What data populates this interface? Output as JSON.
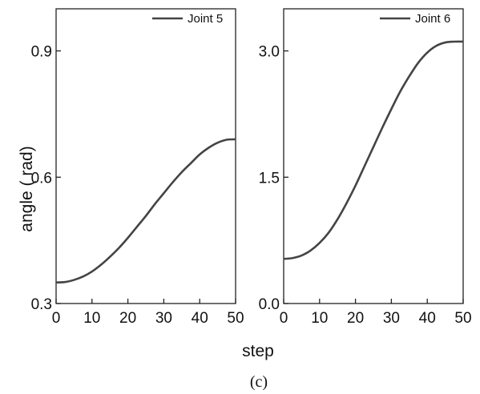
{
  "chart_data": [
    {
      "type": "line",
      "title": "",
      "xlabel": "step",
      "ylabel": "angle ( rad)",
      "xlim": [
        0,
        50
      ],
      "ylim": [
        0.3,
        1.0
      ],
      "xticks": [
        0,
        10,
        20,
        30,
        40,
        50
      ],
      "yticks": [
        0.3,
        0.6,
        0.9
      ],
      "ytick_labels": [
        "0.3",
        "0.6",
        "0.9"
      ],
      "xtick_labels": [
        "0",
        "10",
        "20",
        "30",
        "40",
        "50"
      ],
      "legend_placement": "top-right",
      "grid": false,
      "series": [
        {
          "name": "Joint 5",
          "color": "#444444",
          "x": [
            0,
            2.5,
            5,
            7.5,
            10,
            12.5,
            15,
            17.5,
            20,
            22.5,
            25,
            27.5,
            30,
            32.5,
            35,
            37.5,
            40,
            42.5,
            45,
            47.5,
            50
          ],
          "y": [
            0.35,
            0.351,
            0.356,
            0.364,
            0.376,
            0.392,
            0.411,
            0.432,
            0.456,
            0.482,
            0.508,
            0.536,
            0.562,
            0.588,
            0.612,
            0.633,
            0.654,
            0.67,
            0.682,
            0.689,
            0.69
          ]
        }
      ]
    },
    {
      "type": "line",
      "title": "",
      "xlabel": "",
      "ylabel": "",
      "xlim": [
        0,
        50
      ],
      "ylim": [
        0.0,
        3.5
      ],
      "xticks": [
        0,
        10,
        20,
        30,
        40,
        50
      ],
      "yticks": [
        0.0,
        1.5,
        3.0
      ],
      "ytick_labels": [
        "0.0",
        "1.5",
        "3.0"
      ],
      "xtick_labels": [
        "0",
        "10",
        "20",
        "30",
        "40",
        "50"
      ],
      "legend_placement": "top-right",
      "grid": false,
      "series": [
        {
          "name": "Joint 6",
          "color": "#444444",
          "x": [
            0,
            2.5,
            5,
            7.5,
            10,
            12.5,
            15,
            17.5,
            20,
            22.5,
            25,
            27.5,
            30,
            32.5,
            35,
            37.5,
            40,
            42.5,
            45,
            47.5,
            50
          ],
          "y": [
            0.53,
            0.54,
            0.57,
            0.63,
            0.72,
            0.84,
            1.0,
            1.19,
            1.4,
            1.63,
            1.86,
            2.09,
            2.31,
            2.52,
            2.7,
            2.86,
            2.98,
            3.06,
            3.1,
            3.11,
            3.11
          ]
        }
      ]
    }
  ],
  "caption": "(c)"
}
